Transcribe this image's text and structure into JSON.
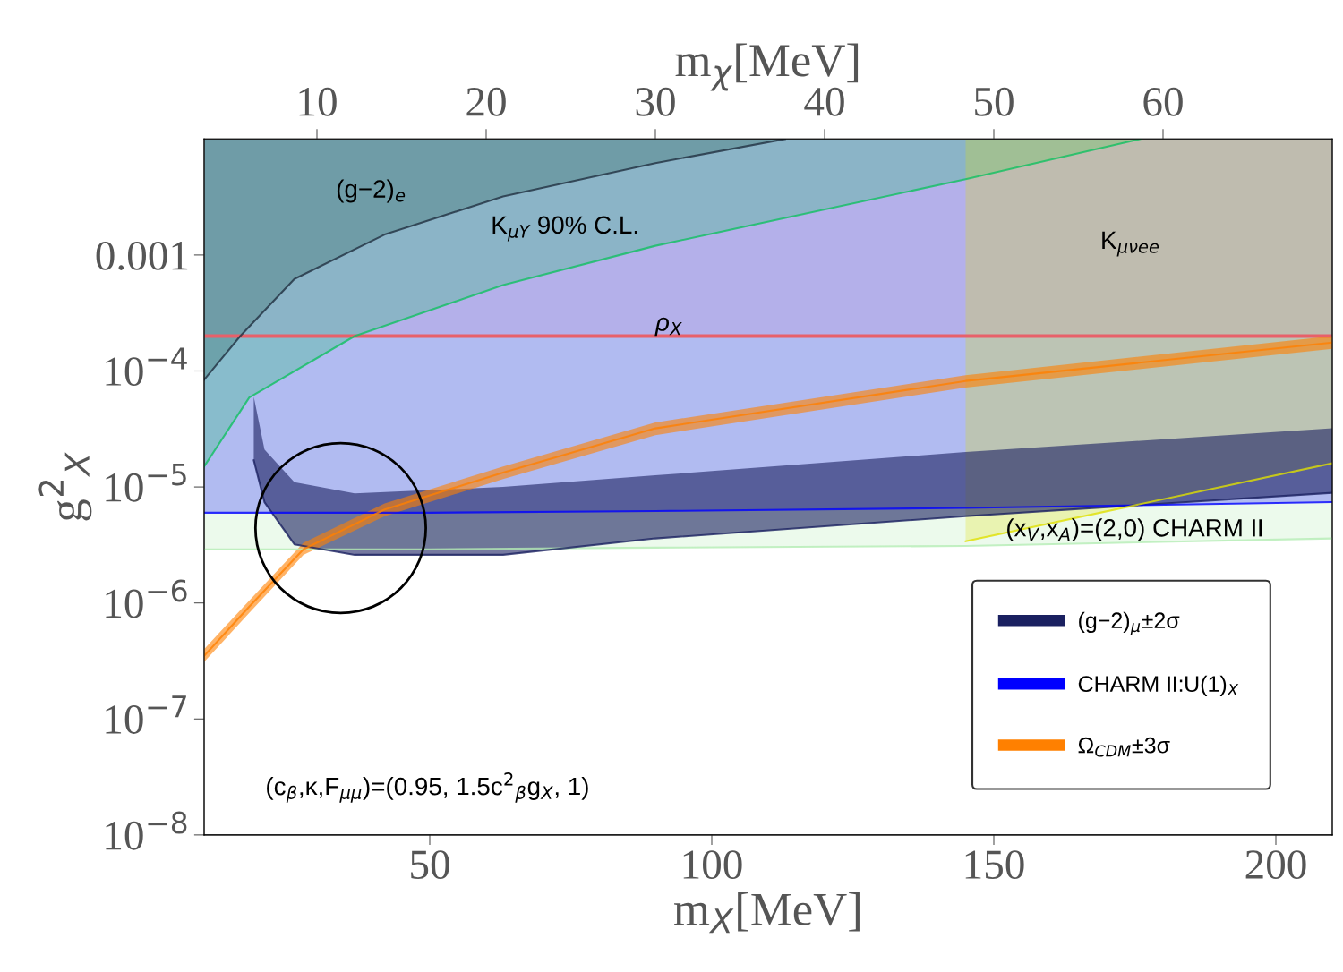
{
  "chart_data": {
    "type": "line",
    "xlabel": "m$_{X}$[MeV]",
    "x2label": "m$_{χ}$[MeV]",
    "ylabel": "g$^{2}$$_{X}$",
    "log": "y",
    "xlim": [
      10,
      210
    ],
    "xticks": [
      50,
      100,
      150,
      200
    ],
    "x2lim": [
      3.3333,
      70
    ],
    "x2ticks": [
      10,
      20,
      30,
      40,
      50,
      60
    ],
    "ylim": [
      1e-08,
      0.01
    ],
    "yticks": [
      {
        "value": 1e-08,
        "label": "10$^{−8}$"
      },
      {
        "value": 1e-07,
        "label": "10$^{−7}$"
      },
      {
        "value": 1e-06,
        "label": "10$^{−6}$"
      },
      {
        "value": 1e-05,
        "label": "10$^{−5}$"
      },
      {
        "value": 0.0001,
        "label": "10$^{−4}$"
      },
      0.001
    ],
    "grid": false,
    "legend": "bottom right",
    "series": [
      {
        "color": "#b4ecb4",
        "x": [
          10,
          50,
          90,
          145,
          210
        ],
        "values": [
          2.9e-06,
          2.9e-06,
          3e-06,
          3.1e-06,
          3.6e-06
        ],
        "lower": [
          2.9e-06,
          2.9e-06,
          3e-06,
          3.1e-06,
          3.6e-06
        ],
        "upper": [
          0.01,
          0.01,
          0.01,
          0.01,
          0.01
        ]
      },
      {
        "name": "(g−2)$_{μ}$±2σ",
        "color": "#1a2060",
        "x": [
          18.8,
          20.7,
          26,
          36.7,
          63,
          90,
          145,
          210
        ],
        "values": [
          1.7e-05,
          7.4e-06,
          3.2e-06,
          2.6e-06,
          2.6e-06,
          3.6e-06,
          5.6e-06,
          8.9e-06
        ],
        "lower": [
          1.7e-05,
          7.4e-06,
          3.2e-06,
          2.6e-06,
          2.6e-06,
          3.6e-06,
          5.6e-06,
          8.9e-06
        ],
        "upper": [
          6e-05,
          2.1e-05,
          1.1e-05,
          8.8e-06,
          1e-05,
          1.26e-05,
          2e-05,
          3.2e-05
        ]
      },
      {
        "name": "CHARM II:U(1)$_{X}$",
        "color": "#0000ff",
        "x": [
          10,
          50,
          90,
          145,
          210
        ],
        "values": [
          6e-06,
          6e-06,
          6.2e-06,
          6.6e-06,
          7.4e-06
        ],
        "lower": [
          6e-06,
          6e-06,
          6.2e-06,
          6.6e-06,
          7.4e-06
        ],
        "upper": [
          0.01,
          0.01,
          0.01,
          0.01,
          0.01
        ]
      },
      {
        "color": "#203040",
        "x": [
          10,
          16.4,
          26,
          42,
          63,
          90,
          113
        ],
        "values": [
          8.4e-05,
          0.0002,
          0.00062,
          0.0015,
          0.0032,
          0.0062,
          0.01
        ],
        "lower": [
          8.4e-05,
          0.0002,
          0.00062,
          0.0015,
          0.0032,
          0.0062,
          0.01
        ],
        "upper": [
          0.01,
          0.01,
          0.01,
          0.01,
          0.01,
          0.01,
          0.01
        ]
      },
      {
        "color": "#10c060",
        "x": [
          10,
          18,
          36.7,
          63,
          90,
          145,
          176
        ],
        "values": [
          1.5e-05,
          5.9e-05,
          0.0002,
          0.00055,
          0.0012,
          0.0045,
          0.01
        ],
        "lower": [
          1.5e-05,
          5.9e-05,
          0.0002,
          0.00055,
          0.0012,
          0.0045,
          0.01
        ],
        "upper": [
          0.01,
          0.01,
          0.01,
          0.01,
          0.01,
          0.01,
          0.01
        ]
      },
      {
        "color": "#e0e000",
        "x": [
          145,
          210
        ],
        "values": [
          3.4e-06,
          1.6e-05
        ],
        "lower": [
          3.4e-06,
          1.6e-05
        ],
        "upper": [
          0.01,
          0.01
        ]
      },
      {
        "name": "Ω$_{CDM}$±3σ",
        "color": "#ff8000",
        "x": [
          10,
          18,
          27.6,
          42,
          63,
          90,
          145,
          210
        ],
        "values": [
          3.5e-07,
          9.3e-07,
          2.9e-06,
          6.4e-06,
          1.33e-05,
          3.2e-05,
          8.2e-05,
          0.000176
        ],
        "lower": [
          3.1e-07,
          8.2e-07,
          2.6e-06,
          5.6e-06,
          1.17e-05,
          2.8e-05,
          7.2e-05,
          0.000155
        ],
        "upper": [
          4e-07,
          1.05e-06,
          3.3e-06,
          7.2e-06,
          1.5e-05,
          3.6e-05,
          9.2e-05,
          0.0002
        ]
      }
    ],
    "ref_lines": [
      {
        "axis": "y",
        "value": 0.0002,
        "label": "ρ$_{X}$",
        "color": "#e8606a"
      }
    ],
    "bands": [
      {
        "axis": "y",
        "from": 0.0002,
        "to": 0.01,
        "color": "#ffc0c8"
      }
    ],
    "annotations": [
      "(g−2)$_{e}$",
      "K$_{μY}$ 90% C.L.",
      "K$_{μνee}$",
      "(x$_{V}$,x$_{A}$)=(2,0) CHARM II",
      "(c$_{β}$,κ,F$_{μμ}$)=(0.95, 1.5c$^{2}$$_{β}$g$_{X}$, 1)"
    ]
  }
}
